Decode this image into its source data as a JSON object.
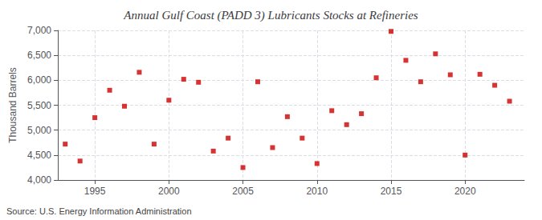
{
  "chart_data": {
    "type": "scatter",
    "title": "Annual Gulf Coast (PADD 3) Lubricants Stocks at Refineries",
    "ylabel": "Thousand Barrels",
    "annotation": "Source: U.S. Energy Information Administration",
    "x": [
      1993,
      1994,
      1995,
      1996,
      1997,
      1998,
      1999,
      2000,
      2001,
      2002,
      2003,
      2004,
      2005,
      2006,
      2007,
      2008,
      2009,
      2010,
      2011,
      2012,
      2013,
      2014,
      2015,
      2016,
      2017,
      2018,
      2019,
      2020,
      2021,
      2022,
      2023
    ],
    "values": [
      4720,
      4380,
      5250,
      5800,
      5480,
      6160,
      4720,
      5600,
      6020,
      5960,
      4580,
      4840,
      4250,
      5970,
      4650,
      5270,
      4840,
      4330,
      5390,
      5110,
      5330,
      6050,
      6980,
      6400,
      5970,
      6530,
      6110,
      4500,
      6120,
      5900,
      5580
    ],
    "color": "#cc0000",
    "marker": "square",
    "xlim": [
      1992.5,
      2024
    ],
    "xticks": [
      1995,
      2000,
      2005,
      2010,
      2015,
      2020
    ],
    "ylim": [
      4000,
      7000
    ],
    "yticks": [
      {
        "value": 4000,
        "label": "4,000"
      },
      {
        "value": 4500,
        "label": "4,500"
      },
      {
        "value": 5000,
        "label": "5,000"
      },
      {
        "value": 5500,
        "label": "5,500"
      },
      {
        "value": 6000,
        "label": "6,000"
      },
      {
        "value": 6500,
        "label": "6,500"
      },
      {
        "value": 7000,
        "label": "7,000"
      }
    ],
    "grid": true
  }
}
